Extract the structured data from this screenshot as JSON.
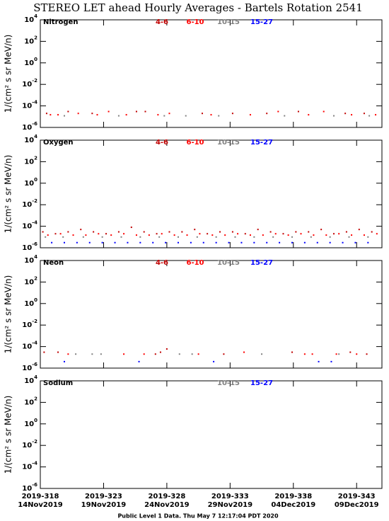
{
  "title": "STEREO LET ahead Hourly Averages - Bartels Rotation 2541",
  "footer": "Public Level 1 Data. Thu May  7 12:17:04 PDT 2020",
  "chart_data": [
    {
      "type": "scatter",
      "title": "Nitrogen",
      "log_y": true,
      "ylabel": "1/(cm² s sr MeV/n)",
      "xlim": [
        318,
        345
      ],
      "xticks": [
        318,
        323,
        328,
        333,
        338,
        343
      ],
      "ylim": [
        1e-06,
        10000
      ],
      "yticks": [
        {
          "value": 10000,
          "label": "10",
          "exponent": "4"
        },
        {
          "value": 100,
          "label": "10",
          "exponent": "2"
        },
        {
          "value": 1,
          "label": "10",
          "exponent": "0"
        },
        {
          "value": 0.01,
          "label": "10",
          "exponent": "-2"
        },
        {
          "value": 0.0001,
          "label": "10",
          "exponent": "-4"
        },
        {
          "value": 1e-06,
          "label": "10",
          "exponent": "-6"
        }
      ],
      "series": [
        {
          "name": "4-6",
          "color": "#c00000",
          "x": [
            318.5,
            320.2,
            322.1,
            325.6,
            326.3,
            330.8,
            333.2,
            335.9,
            338.4,
            342.1,
            343.6
          ],
          "values": [
            2e-05,
            3e-05,
            2e-05,
            3e-05,
            3e-05,
            2e-05,
            2e-05,
            2e-05,
            3e-05,
            2e-05,
            2e-05
          ]
        },
        {
          "name": "6-10",
          "color": "#ff0000",
          "x": [
            318.8,
            319.4,
            321.0,
            322.5,
            323.4,
            324.8,
            327.3,
            328.2,
            331.5,
            334.6,
            336.8,
            339.2,
            340.4,
            342.6,
            344.5
          ],
          "values": [
            1.5e-05,
            1.5e-05,
            2e-05,
            1.5e-05,
            3e-05,
            1.5e-05,
            1.5e-05,
            2e-05,
            1.5e-05,
            1.5e-05,
            3e-05,
            1.5e-05,
            3e-05,
            1.5e-05,
            1.5e-05
          ]
        },
        {
          "name": "10-15",
          "color": "#808080",
          "x": [
            319.9,
            324.2,
            327.8,
            329.5,
            332.1,
            337.3,
            341.2,
            344.0
          ],
          "values": [
            1.2e-05,
            1.2e-05,
            1.2e-05,
            1.2e-05,
            1.2e-05,
            1.2e-05,
            1.2e-05,
            1.2e-05
          ]
        },
        {
          "name": "15-27",
          "color": "#0000ff",
          "x": [],
          "values": []
        }
      ]
    },
    {
      "type": "scatter",
      "title": "Oxygen",
      "log_y": true,
      "ylabel": "1/(cm² s sr MeV/n)",
      "xlim": [
        318,
        345
      ],
      "xticks": [
        318,
        323,
        328,
        333,
        338,
        343
      ],
      "ylim": [
        1e-06,
        10000
      ],
      "yticks": [
        {
          "value": 10000,
          "label": "10",
          "exponent": "4"
        },
        {
          "value": 100,
          "label": "10",
          "exponent": "2"
        },
        {
          "value": 1,
          "label": "10",
          "exponent": "0"
        },
        {
          "value": 0.01,
          "label": "10",
          "exponent": "-2"
        },
        {
          "value": 0.0001,
          "label": "10",
          "exponent": "-4"
        },
        {
          "value": 1e-06,
          "label": "10",
          "exponent": "-6"
        }
      ],
      "series": [
        {
          "name": "4-6",
          "color": "#c00000",
          "x": [
            318.2,
            319.2,
            320.2,
            321.2,
            322.2,
            323.2,
            324.2,
            325.2,
            326.2,
            327.2,
            328.2,
            329.2,
            330.2,
            331.2,
            332.2,
            333.2,
            334.2,
            335.2,
            336.2,
            337.2,
            338.2,
            339.2,
            340.2,
            341.2,
            342.2,
            343.2,
            344.2
          ],
          "values": [
            3e-05,
            2e-05,
            3e-05,
            5e-05,
            3e-05,
            2e-05,
            3e-05,
            8e-05,
            3e-05,
            2e-05,
            3e-05,
            3e-05,
            5e-05,
            2e-05,
            3e-05,
            3e-05,
            2e-05,
            5e-05,
            3e-05,
            2e-05,
            3e-05,
            3e-05,
            5e-05,
            2e-05,
            3e-05,
            5e-05,
            3e-05
          ]
        },
        {
          "name": "6-10",
          "color": "#ff0000",
          "x": [
            318.6,
            319.6,
            320.6,
            321.6,
            322.6,
            323.6,
            324.6,
            325.6,
            326.6,
            327.6,
            328.6,
            329.6,
            330.6,
            331.6,
            332.6,
            333.6,
            334.6,
            335.6,
            336.6,
            337.6,
            338.6,
            339.6,
            340.6,
            341.6,
            342.6,
            343.6,
            344.6
          ],
          "values": [
            1.5e-05,
            2e-05,
            1.5e-05,
            1.5e-05,
            2e-05,
            1.5e-05,
            2e-05,
            1.5e-05,
            1.5e-05,
            2e-05,
            1.5e-05,
            1.5e-05,
            2e-05,
            1.5e-05,
            1.5e-05,
            2e-05,
            1.5e-05,
            1.5e-05,
            2e-05,
            1.5e-05,
            2e-05,
            1.5e-05,
            1.5e-05,
            2e-05,
            1.5e-05,
            1.5e-05,
            2e-05
          ]
        },
        {
          "name": "10-15",
          "color": "#808080",
          "x": [
            318.4,
            319.8,
            321.4,
            322.9,
            324.4,
            325.9,
            327.4,
            328.9,
            330.4,
            331.9,
            333.4,
            334.9,
            336.4,
            337.9,
            339.4,
            340.9,
            342.4,
            343.9
          ],
          "values": [
            1e-05,
            1e-05,
            1e-05,
            1e-05,
            1e-05,
            1e-05,
            1e-05,
            1e-05,
            1e-05,
            1e-05,
            1e-05,
            1e-05,
            1e-05,
            1e-05,
            1e-05,
            1e-05,
            1e-05,
            1e-05
          ]
        },
        {
          "name": "15-27",
          "color": "#0000ff",
          "x": [
            318.9,
            319.9,
            320.9,
            321.9,
            322.9,
            323.9,
            324.9,
            325.9,
            326.9,
            327.9,
            328.9,
            329.9,
            330.9,
            331.9,
            332.9,
            333.9,
            334.9,
            335.9,
            336.9,
            337.9,
            338.9,
            339.9,
            340.9,
            341.9,
            342.9,
            343.9
          ],
          "values": [
            3e-06,
            3e-06,
            3e-06,
            3e-06,
            3e-06,
            3e-06,
            3e-06,
            3e-06,
            3e-06,
            3e-06,
            3e-06,
            3e-06,
            3e-06,
            3e-06,
            3e-06,
            3e-06,
            3e-06,
            3e-06,
            3e-06,
            3e-06,
            3e-06,
            3e-06,
            3e-06,
            3e-06,
            3e-06,
            3e-06
          ]
        }
      ]
    },
    {
      "type": "scatter",
      "title": "Neon",
      "log_y": true,
      "ylabel": "1/(cm² s sr MeV/n)",
      "xlim": [
        318,
        345
      ],
      "xticks": [
        318,
        323,
        328,
        333,
        338,
        343
      ],
      "ylim": [
        1e-06,
        10000
      ],
      "yticks": [
        {
          "value": 10000,
          "label": "10",
          "exponent": "4"
        },
        {
          "value": 100,
          "label": "10",
          "exponent": "2"
        },
        {
          "value": 1,
          "label": "10",
          "exponent": "0"
        },
        {
          "value": 0.01,
          "label": "10",
          "exponent": "-2"
        },
        {
          "value": 0.0001,
          "label": "10",
          "exponent": "-4"
        },
        {
          "value": 1e-06,
          "label": "10",
          "exponent": "-6"
        }
      ],
      "series": [
        {
          "name": "4-6",
          "color": "#c00000",
          "x": [
            318.3,
            319.4,
            327.1,
            327.5,
            328.0,
            332.5,
            337.9,
            342.5,
            343.8
          ],
          "values": [
            3e-05,
            3e-05,
            2e-05,
            3e-05,
            6e-05,
            2e-05,
            3e-05,
            3e-05,
            2e-05
          ]
        },
        {
          "name": "6-10",
          "color": "#ff0000",
          "x": [
            320.2,
            324.6,
            326.2,
            330.5,
            334.1,
            338.9,
            339.5,
            341.4,
            343.0
          ],
          "values": [
            2e-05,
            2e-05,
            2e-05,
            2e-05,
            3e-05,
            2e-05,
            2e-05,
            2e-05,
            2e-05
          ]
        },
        {
          "name": "10-15",
          "color": "#808080",
          "x": [
            320.8,
            322.1,
            322.8,
            329.0,
            330.0,
            335.5,
            341.6
          ],
          "values": [
            2e-05,
            2e-05,
            2e-05,
            2e-05,
            2e-05,
            2e-05,
            2e-05
          ]
        },
        {
          "name": "15-27",
          "color": "#0000ff",
          "x": [
            319.9,
            325.8,
            331.7,
            340.0,
            341.0
          ],
          "values": [
            4e-06,
            4e-06,
            4e-06,
            4e-06,
            4e-06
          ]
        }
      ]
    },
    {
      "type": "scatter",
      "title": "Sodium",
      "log_y": true,
      "ylabel": "1/(cm² s sr MeV/n)",
      "xlim": [
        318,
        345
      ],
      "xticks": [
        {
          "value": 318,
          "label": "2019-318",
          "date": "14Nov2019"
        },
        {
          "value": 323,
          "label": "2019-323",
          "date": "19Nov2019"
        },
        {
          "value": 328,
          "label": "2019-328",
          "date": "24Nov2019"
        },
        {
          "value": 333,
          "label": "2019-333",
          "date": "29Nov2019"
        },
        {
          "value": 338,
          "label": "2019-338",
          "date": "04Dec2019"
        },
        {
          "value": 343,
          "label": "2019-343",
          "date": "09Dec2019"
        }
      ],
      "ylim": [
        1e-06,
        10000
      ],
      "yticks": [
        {
          "value": 10000,
          "label": "10",
          "exponent": "4"
        },
        {
          "value": 100,
          "label": "10",
          "exponent": "2"
        },
        {
          "value": 1,
          "label": "10",
          "exponent": "0"
        },
        {
          "value": 0.01,
          "label": "10",
          "exponent": "-2"
        },
        {
          "value": 0.0001,
          "label": "10",
          "exponent": "-4"
        },
        {
          "value": 1e-06,
          "label": "10",
          "exponent": "-6"
        }
      ],
      "series": [
        {
          "name": "10-15",
          "color": "#808080",
          "x": [],
          "values": []
        },
        {
          "name": "15-27",
          "color": "#0000ff",
          "x": [],
          "values": []
        }
      ]
    }
  ]
}
